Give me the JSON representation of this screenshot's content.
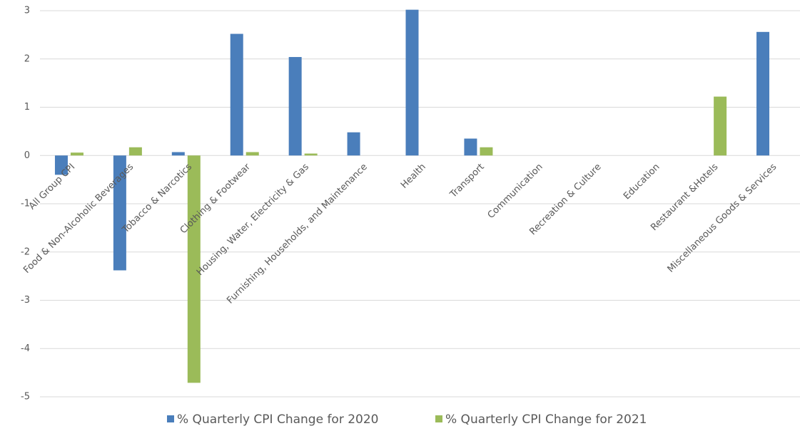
{
  "chart_data": {
    "type": "bar",
    "categories": [
      "All Group CPI",
      "Food & Non-Alcoholic Beverages",
      "Tobacco & Narcotics",
      "Clothing & Footwear",
      "Housing, Water, Electricity & Gas",
      "Furnishing, Households, and Maintenance",
      "Health",
      "Transport",
      "Communication",
      "Recreation & Culture",
      "Education",
      "Restaurant &Hotels",
      "Miscellaneous Goods & Services"
    ],
    "series": [
      {
        "name": "% Quarterly CPI Change for 2020",
        "color": "#4a7ebb",
        "values": [
          -0.4,
          -2.38,
          0.07,
          2.52,
          2.04,
          0.48,
          3.02,
          0.35,
          null,
          null,
          null,
          null,
          2.56
        ]
      },
      {
        "name": "% Quarterly CPI Change for 2021",
        "color": "#9bbb59",
        "values": [
          0.06,
          0.17,
          -4.71,
          0.07,
          0.04,
          null,
          null,
          0.17,
          null,
          null,
          null,
          1.22,
          null
        ]
      }
    ],
    "ylim": [
      -5,
      3
    ],
    "yticks": [
      -5,
      -4,
      -3,
      -2,
      -1,
      0,
      1,
      2,
      3
    ],
    "grid": true,
    "legend": "bottom"
  }
}
